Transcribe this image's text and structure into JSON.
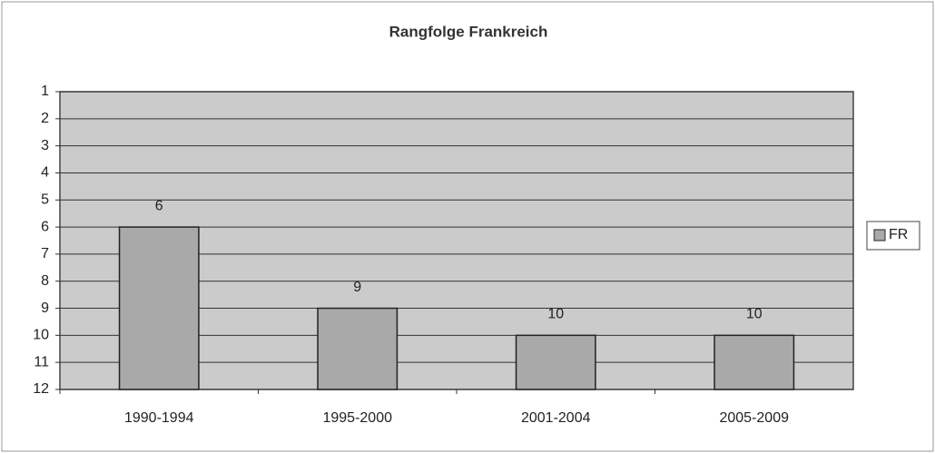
{
  "chart_data": {
    "type": "bar",
    "title": "Rangfolge Frankreich",
    "categories": [
      "1990-1994",
      "1995-2000",
      "2001-2004",
      "2005-2009"
    ],
    "series": [
      {
        "name": "FR",
        "color": "#a9a9a9",
        "values": [
          6,
          9,
          10,
          10
        ]
      }
    ],
    "ylim": [
      12,
      1
    ],
    "yticks": [
      1,
      2,
      3,
      4,
      5,
      6,
      7,
      8,
      9,
      10,
      11,
      12
    ],
    "grid": true,
    "legend": "right",
    "plot_background": "#cbcbcb"
  }
}
